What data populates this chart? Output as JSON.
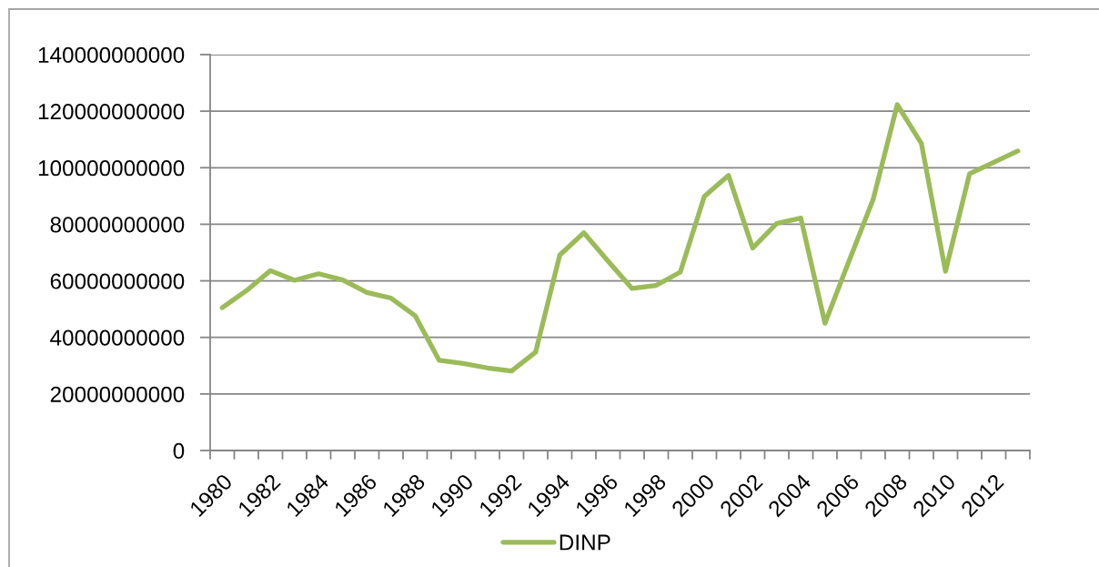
{
  "chart_data": {
    "type": "line",
    "categories": [
      "1980",
      null,
      "1982",
      null,
      "1984",
      null,
      "1986",
      null,
      "1988",
      null,
      "1990",
      null,
      "1992",
      null,
      "1994",
      null,
      "1996",
      null,
      "1998",
      null,
      "2000",
      null,
      "2002",
      null,
      "2004",
      null,
      "2006",
      null,
      "2008",
      null,
      "2010",
      null,
      "2012",
      null
    ],
    "series": [
      {
        "name": "DINP",
        "color": "#9bbb59",
        "values": [
          50500000000,
          56500000000,
          63600000000,
          60200000000,
          62500000000,
          60300000000,
          55900000000,
          53900000000,
          47700000000,
          31900000000,
          30800000000,
          29200000000,
          28100000000,
          34800000000,
          69100000000,
          77000000000,
          67000000000,
          57300000000,
          58400000000,
          63100000000,
          89900000000,
          97300000000,
          71600000000,
          80300000000,
          82200000000,
          45000000000,
          67000000000,
          88800000000,
          122300000000,
          108600000000,
          63400000000,
          97900000000,
          101900000000,
          105900000000
        ]
      }
    ],
    "ylim": [
      0,
      140000000000
    ],
    "yticks": [
      0,
      20000000000,
      40000000000,
      60000000000,
      80000000000,
      100000000000,
      120000000000,
      140000000000
    ],
    "grid": "y",
    "legend": "bottom",
    "line_style": "solid"
  }
}
